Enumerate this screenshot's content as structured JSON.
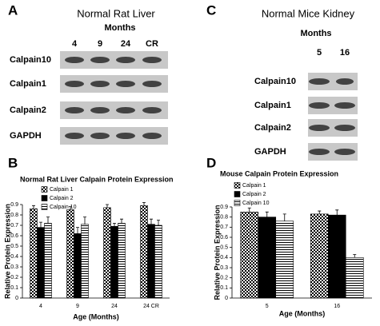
{
  "panel_labels": [
    "A",
    "B",
    "C",
    "D"
  ],
  "blots": [
    {
      "title": "Normal Rat Liver",
      "subtitle": "Months",
      "lanes": [
        "4",
        "9",
        "24",
        "CR"
      ],
      "rows": [
        "Calpain10",
        "Calpain1",
        "Calpain2",
        "GAPDH"
      ]
    },
    {
      "title": "Normal Mice Kidney",
      "subtitle": "Months",
      "lanes": [
        "5",
        "16"
      ],
      "rows": [
        "Calpain10",
        "Calpain1",
        "Calpain2",
        "GAPDH"
      ]
    }
  ],
  "chart_data": [
    {
      "type": "bar",
      "title": "Normal Rat Liver Calpain Protein Expression",
      "x_label": "Age (Months)",
      "y_label": "Relative Protein Expression",
      "categories": [
        "4",
        "9",
        "24",
        "24 CR"
      ],
      "series": [
        {
          "name": "Calpain 1",
          "color": "#000000",
          "pattern": "checker",
          "values": [
            0.86,
            0.85,
            0.87,
            0.89
          ],
          "errors": [
            0.03,
            0.03,
            0.03,
            0.03
          ]
        },
        {
          "name": "Calpain 2",
          "color": "#000000",
          "pattern": "solid",
          "values": [
            0.68,
            0.62,
            0.69,
            0.71
          ],
          "errors": [
            0.05,
            0.06,
            0.03,
            0.05
          ]
        },
        {
          "name": "Calpain 10",
          "color": "#000000",
          "pattern": "hstripe",
          "values": [
            0.72,
            0.71,
            0.72,
            0.7
          ],
          "errors": [
            0.06,
            0.07,
            0.04,
            0.05
          ]
        }
      ],
      "ylim": [
        0,
        0.9
      ],
      "yticks": [
        0,
        0.1,
        0.2,
        0.3,
        0.4,
        0.5,
        0.6,
        0.7,
        0.8,
        0.9
      ],
      "legend": "upper-left"
    },
    {
      "type": "bar",
      "title": "Mouse Calpain Protein Expression",
      "x_label": "Age (Months)",
      "y_label": "Relative Protein Expression",
      "categories": [
        "5",
        "16"
      ],
      "series": [
        {
          "name": "Calpain 1",
          "color": "#000000",
          "pattern": "checker",
          "values": [
            0.85,
            0.83
          ],
          "errors": [
            0.04,
            0.03
          ]
        },
        {
          "name": "Calpain 2",
          "color": "#000000",
          "pattern": "solid",
          "values": [
            0.8,
            0.82
          ],
          "errors": [
            0.05,
            0.05
          ]
        },
        {
          "name": "Calpain 10",
          "color": "#000000",
          "pattern": "hstripe",
          "values": [
            0.76,
            0.4
          ],
          "errors": [
            0.07,
            0.03
          ]
        }
      ],
      "ylim": [
        0,
        0.9
      ],
      "yticks": [
        0,
        0.1,
        0.2,
        0.3,
        0.4,
        0.5,
        0.6,
        0.7,
        0.8,
        0.9
      ],
      "legend": "upper-left"
    }
  ]
}
